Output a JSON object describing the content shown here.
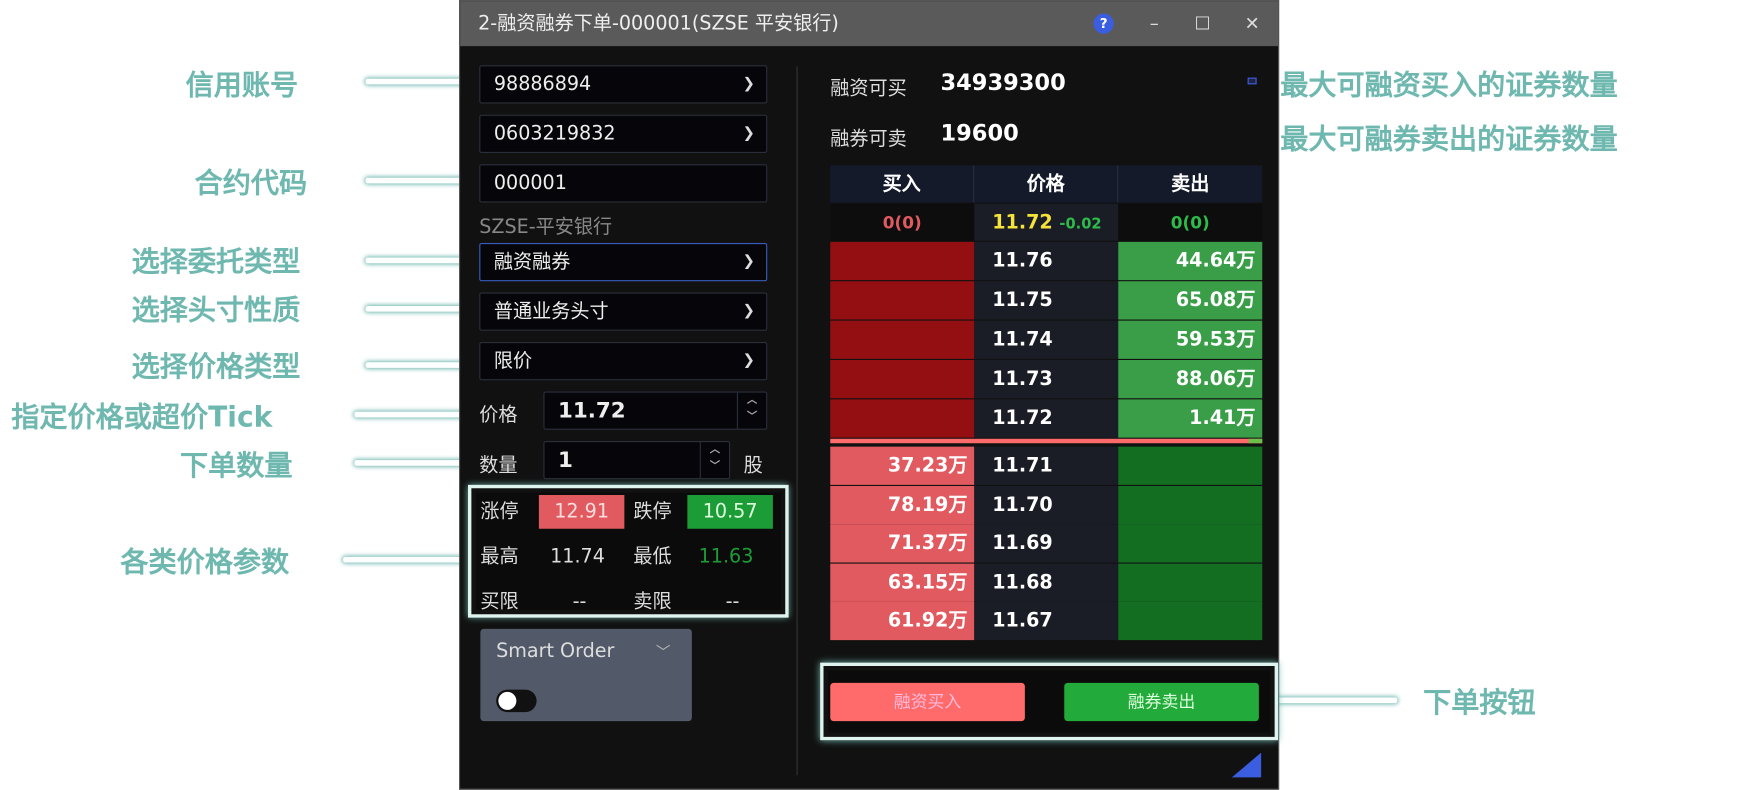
{
  "window": {
    "title": "2-融资融券下单-000001(SZSE 平安银行)",
    "help": "?",
    "minimize": "–",
    "maximize": "☐",
    "close": "✕"
  },
  "form": {
    "account": "98886894",
    "sub_account": "0603219832",
    "code": "000001",
    "security_name": "SZSE-平安银行",
    "order_type": "融资融券",
    "position_type": "普通业务头寸",
    "price_type": "限价",
    "price_label": "价格",
    "price": "11.72",
    "qty_label": "数量",
    "qty": "1",
    "qty_unit": "股"
  },
  "params": {
    "up_limit_label": "涨停",
    "up_limit": "12.91",
    "down_limit_label": "跌停",
    "down_limit": "10.57",
    "high_label": "最高",
    "high": "11.74",
    "low_label": "最低",
    "low": "11.63",
    "buy_limit_label": "买限",
    "buy_limit": "--",
    "sell_limit_label": "卖限",
    "sell_limit": "--"
  },
  "smart_order": {
    "label": "Smart Order",
    "enabled": false
  },
  "capacity": {
    "buy_label": "融资可买",
    "buy_value": "34939300",
    "sell_label": "融券可卖",
    "sell_value": "19600"
  },
  "book": {
    "headers": [
      "买入",
      "价格",
      "卖出"
    ],
    "summary": {
      "buy": "0(0)",
      "price": "11.72",
      "change": "-0.02",
      "sell": "0(0)"
    },
    "asks": [
      {
        "price": "11.76",
        "vol": "44.64万"
      },
      {
        "price": "11.75",
        "vol": "65.08万"
      },
      {
        "price": "11.74",
        "vol": "59.53万"
      },
      {
        "price": "11.73",
        "vol": "88.06万"
      },
      {
        "price": "11.72",
        "vol": "1.41万"
      }
    ],
    "bids": [
      {
        "price": "11.71",
        "vol": "37.23万"
      },
      {
        "price": "11.70",
        "vol": "78.19万"
      },
      {
        "price": "11.69",
        "vol": "71.37万"
      },
      {
        "price": "11.68",
        "vol": "63.15万"
      },
      {
        "price": "11.67",
        "vol": "61.92万"
      }
    ]
  },
  "buttons": {
    "buy": "融资买入",
    "sell": "融券卖出"
  },
  "annotations": {
    "account": "信用账号",
    "code": "合约代码",
    "order_type": "选择委托类型",
    "position_type": "选择头寸性质",
    "price_type": "选择价格类型",
    "price": "指定价格或超价Tick",
    "qty": "下单数量",
    "params": "各类价格参数",
    "max_buy": "最大可融资买入的证券数量",
    "max_sell": "最大可融券卖出的证券数量",
    "order_buttons": "下单按钮"
  },
  "colors": {
    "accent": "#6fb8b0",
    "buy": "#ff6b6b",
    "sell": "#22aa3a",
    "up": "#e05a60",
    "down": "#1c9c36"
  }
}
